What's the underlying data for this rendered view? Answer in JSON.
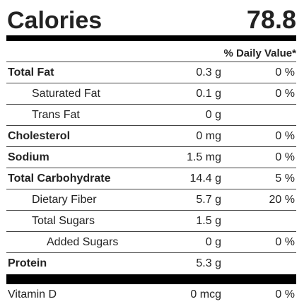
{
  "calories": {
    "label": "Calories",
    "value": "78.8"
  },
  "daily_value_header": "% Daily Value*",
  "nutrients": [
    {
      "name": "Total Fat",
      "amount": "0.3 g",
      "dv": "0 %"
    },
    {
      "name": "Saturated Fat",
      "amount": "0.1 g",
      "dv": "0 %"
    },
    {
      "name": "Trans Fat",
      "amount": "0 g",
      "dv": ""
    },
    {
      "name": "Cholesterol",
      "amount": "0 mg",
      "dv": "0 %"
    },
    {
      "name": "Sodium",
      "amount": "1.5 mg",
      "dv": "0 %"
    },
    {
      "name": "Total Carbohydrate",
      "amount": "14.4 g",
      "dv": "5 %"
    },
    {
      "name": "Dietary Fiber",
      "amount": "5.7 g",
      "dv": "20 %"
    },
    {
      "name": "Total Sugars",
      "amount": "1.5 g",
      "dv": ""
    },
    {
      "name": "Added Sugars",
      "amount": "0 g",
      "dv": "0 %"
    },
    {
      "name": "Protein",
      "amount": "5.3 g",
      "dv": ""
    }
  ],
  "vitamins": [
    {
      "name": "Vitamin D",
      "amount": "0 mcg",
      "dv": "0 %"
    }
  ]
}
